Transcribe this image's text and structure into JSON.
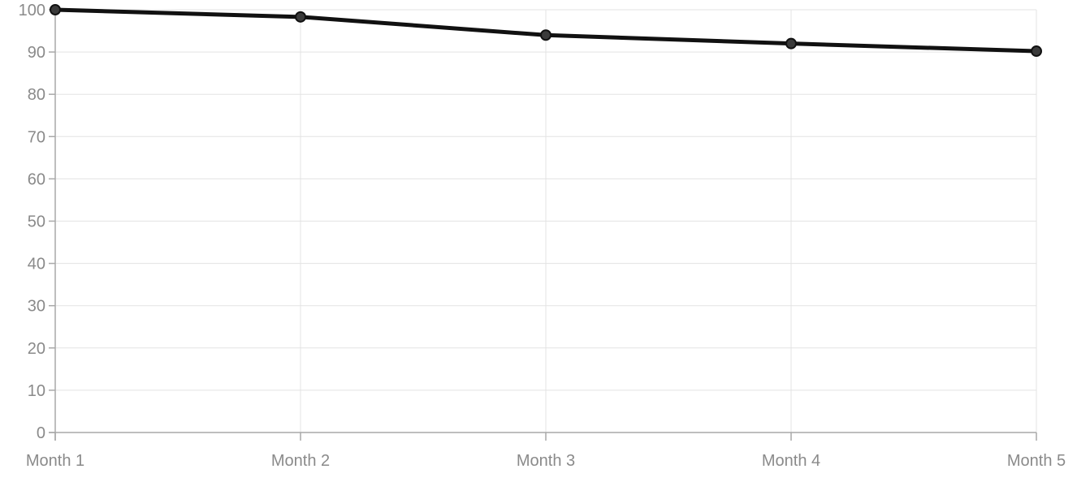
{
  "colors": {
    "line": "#111111",
    "point_fill": "#3a3a3a",
    "point_stroke": "#111111",
    "grid": "#e3e3e3",
    "axis": "#a8a8a8",
    "tick_text": "#8a8a8a"
  },
  "chart_data": {
    "type": "line",
    "title": "",
    "xlabel": "",
    "ylabel": "",
    "categories": [
      "Month 1",
      "Month 2",
      "Month 3",
      "Month 4",
      "Month 5"
    ],
    "series": [
      {
        "values": [
          100,
          98.3,
          94,
          92,
          90.2
        ]
      }
    ],
    "ylim": [
      0,
      100
    ],
    "yticks": [
      0,
      10,
      20,
      30,
      40,
      50,
      60,
      70,
      80,
      90,
      100
    ],
    "grid": true,
    "legend": "none"
  }
}
